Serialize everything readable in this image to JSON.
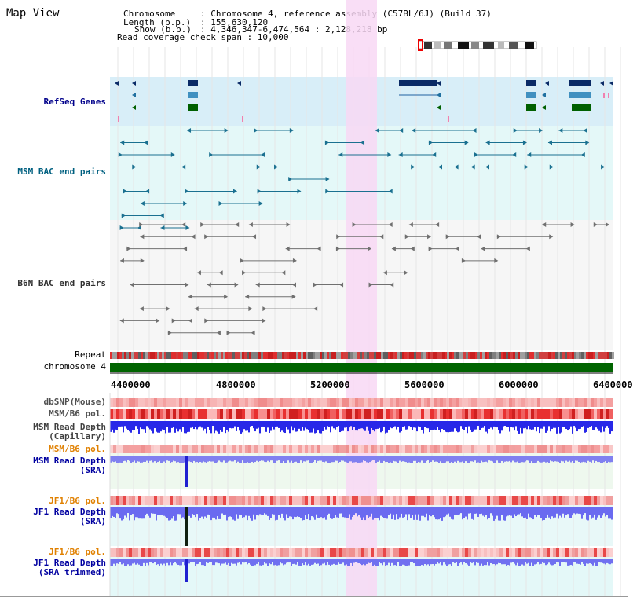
{
  "title": "Map View",
  "info": {
    "chromosome_key": "Chromosome",
    "chromosome_val": ": Chromosome 4, reference assembly (C57BL/6J) (Build 37)",
    "length_key": "Length (b.p.)",
    "length_val": ": 155,630,120",
    "show_key": "Show (b.p.)",
    "show_val": ": 4,346,347-6,474,564 : 2,128,218 bp",
    "coverage": "Read coverage check span : 10,000"
  },
  "tracks": {
    "refseq": "RefSeq Genes",
    "msm_bac": "MSM BAC end pairs",
    "b6n_bac": "B6N BAC end pairs",
    "repeat": "Repeat",
    "chromosome": "chromosome 4",
    "dbsnp": "dbSNP(Mouse)",
    "msm_pol": "MSM/B6 pol.",
    "msm_depth_cap_1": "MSM Read Depth",
    "msm_depth_cap_2": "(Capillary)",
    "msm_pol2": "MSM/B6 pol.",
    "msm_depth_sra_1": "MSM Read Depth",
    "msm_depth_sra_2": "(SRA)",
    "jf1_pol": "JF1/B6 pol.",
    "jf1_depth_1": "JF1 Read Depth",
    "jf1_depth_2": "(SRA)",
    "jf1_pol2": "JF1/B6 pol.",
    "jf1_trim_1": "JF1 Read Depth",
    "jf1_trim_2": "(SRA trimmed)"
  },
  "axis": {
    "ticks": [
      "4400000",
      "4800000",
      "5200000",
      "5600000",
      "6000000",
      "6400000"
    ]
  },
  "colors": {
    "refseq_label": "#00008b",
    "msm_label": "#006080",
    "b6n_label": "#303030",
    "orange_label": "#e08000",
    "blue_label": "#0000a0",
    "highlight": "#f8d8f4"
  }
}
